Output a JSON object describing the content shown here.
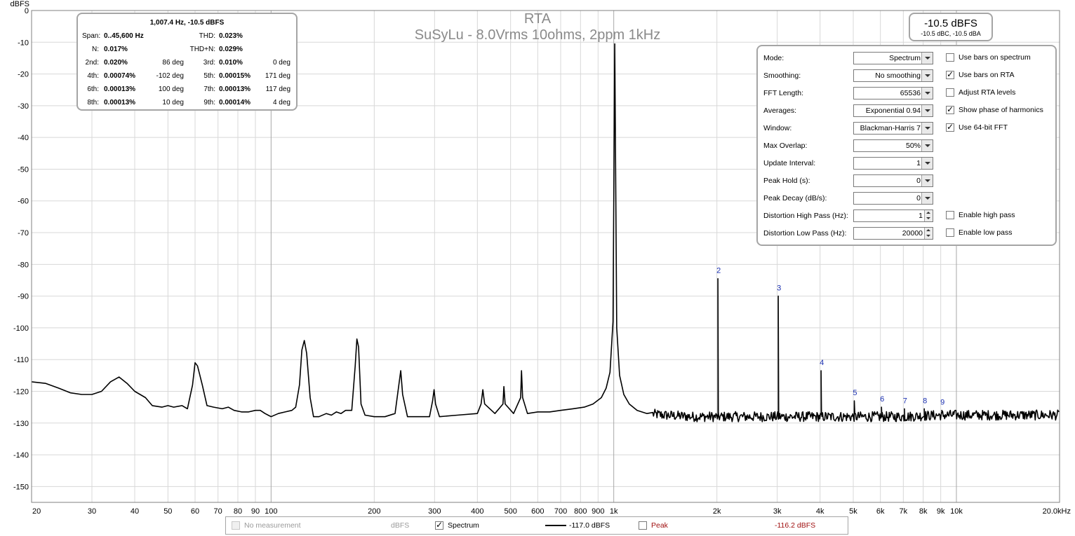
{
  "chart_data": {
    "type": "line",
    "title": "RTA",
    "subtitle": "SuSyLu - 8.0Vrms 10ohms, 2ppm 1kHz",
    "ylabel": "dBFS",
    "xlabel": "",
    "xscale": "log",
    "xlim": [
      20,
      20000
    ],
    "ylim": [
      -155,
      0
    ],
    "grid": true,
    "y_ticks": [
      "0",
      "-10",
      "-20",
      "-30",
      "-40",
      "-50",
      "-60",
      "-70",
      "-80",
      "-90",
      "-100",
      "-110",
      "-120",
      "-130",
      "-140",
      "-150"
    ],
    "x_ticks": [
      {
        "v": 20,
        "label": "20"
      },
      {
        "v": 30,
        "label": "30"
      },
      {
        "v": 40,
        "label": "40"
      },
      {
        "v": 50,
        "label": "50"
      },
      {
        "v": 60,
        "label": "60"
      },
      {
        "v": 70,
        "label": "70"
      },
      {
        "v": 80,
        "label": "80"
      },
      {
        "v": 90,
        "label": "90"
      },
      {
        "v": 100,
        "label": "100"
      },
      {
        "v": 200,
        "label": "200"
      },
      {
        "v": 300,
        "label": "300"
      },
      {
        "v": 400,
        "label": "400"
      },
      {
        "v": 500,
        "label": "500"
      },
      {
        "v": 600,
        "label": "600"
      },
      {
        "v": 700,
        "label": "700"
      },
      {
        "v": 800,
        "label": "800"
      },
      {
        "v": 900,
        "label": "900"
      },
      {
        "v": 1000,
        "label": "1k"
      },
      {
        "v": 2000,
        "label": "2k"
      },
      {
        "v": 3000,
        "label": "3k"
      },
      {
        "v": 4000,
        "label": "4k"
      },
      {
        "v": 5000,
        "label": "5k"
      },
      {
        "v": 6000,
        "label": "6k"
      },
      {
        "v": 7000,
        "label": "7k"
      },
      {
        "v": 8000,
        "label": "8k"
      },
      {
        "v": 9000,
        "label": "9k"
      },
      {
        "v": 10000,
        "label": "10k"
      },
      {
        "v": 20000,
        "label": "20.0kHz"
      }
    ],
    "series": [
      {
        "name": "Spectrum",
        "color": "#000000",
        "baseline": [
          [
            20,
            -117
          ],
          [
            22,
            -117.5
          ],
          [
            24,
            -119
          ],
          [
            26,
            -120.5
          ],
          [
            28,
            -121
          ],
          [
            30,
            -121
          ],
          [
            32,
            -120
          ],
          [
            34,
            -117
          ],
          [
            36,
            -115.5
          ],
          [
            38,
            -117.5
          ],
          [
            40,
            -120
          ],
          [
            43,
            -122
          ],
          [
            45,
            -124.5
          ],
          [
            48,
            -125
          ],
          [
            50,
            -124.5
          ],
          [
            52,
            -125
          ],
          [
            55,
            -124.5
          ],
          [
            57,
            -125.5
          ],
          [
            59,
            -118
          ],
          [
            60,
            -111
          ],
          [
            61,
            -112
          ],
          [
            63,
            -118
          ],
          [
            65,
            -124.5
          ],
          [
            68,
            -125
          ],
          [
            72,
            -125.5
          ],
          [
            75,
            -125
          ],
          [
            78,
            -126
          ],
          [
            82,
            -126.5
          ],
          [
            86,
            -126.5
          ],
          [
            90,
            -126
          ],
          [
            93,
            -126
          ],
          [
            96,
            -127
          ],
          [
            100,
            -128
          ],
          [
            105,
            -127
          ],
          [
            110,
            -126.5
          ],
          [
            115,
            -126
          ],
          [
            118,
            -125
          ],
          [
            121,
            -118
          ],
          [
            123,
            -107
          ],
          [
            125,
            -104
          ],
          [
            127,
            -108
          ],
          [
            130,
            -122
          ],
          [
            133,
            -128
          ],
          [
            138,
            -128
          ],
          [
            145,
            -127
          ],
          [
            150,
            -127.5
          ],
          [
            155,
            -126.5
          ],
          [
            160,
            -127
          ],
          [
            165,
            -126
          ],
          [
            172,
            -126
          ],
          [
            176,
            -112
          ],
          [
            178,
            -103.5
          ],
          [
            180,
            -106
          ],
          [
            183,
            -124
          ],
          [
            188,
            -127.5
          ],
          [
            200,
            -128
          ],
          [
            215,
            -128
          ],
          [
            230,
            -127
          ],
          [
            236,
            -118
          ],
          [
            239,
            -113.5
          ],
          [
            242,
            -121
          ],
          [
            250,
            -128
          ],
          [
            270,
            -128
          ],
          [
            290,
            -128
          ],
          [
            296,
            -123
          ],
          [
            299,
            -119.5
          ],
          [
            302,
            -124
          ],
          [
            310,
            -128
          ],
          [
            350,
            -127.5
          ],
          [
            400,
            -127
          ],
          [
            410,
            -124
          ],
          [
            415,
            -119.5
          ],
          [
            420,
            -124
          ],
          [
            450,
            -127
          ],
          [
            475,
            -124
          ],
          [
            478,
            -118.5
          ],
          [
            482,
            -124
          ],
          [
            510,
            -127
          ],
          [
            535,
            -122
          ],
          [
            538,
            -113.5
          ],
          [
            542,
            -122
          ],
          [
            560,
            -127
          ],
          [
            600,
            -126.5
          ],
          [
            650,
            -126.5
          ],
          [
            700,
            -126
          ],
          [
            760,
            -125.5
          ],
          [
            820,
            -125
          ],
          [
            870,
            -124
          ],
          [
            920,
            -122
          ],
          [
            950,
            -119
          ],
          [
            975,
            -114
          ],
          [
            995,
            -98
          ],
          [
            1007,
            -10.5
          ],
          [
            1020,
            -100
          ],
          [
            1040,
            -115
          ],
          [
            1070,
            -121
          ],
          [
            1110,
            -124
          ],
          [
            1170,
            -126
          ],
          [
            1250,
            -127
          ],
          [
            1400,
            -127.5
          ],
          [
            1700,
            -128
          ],
          [
            2000,
            -128
          ],
          [
            2300,
            -128
          ],
          [
            2800,
            -128
          ],
          [
            3500,
            -128
          ],
          [
            4500,
            -128
          ],
          [
            5500,
            -128
          ],
          [
            7000,
            -128
          ],
          [
            9000,
            -127.5
          ],
          [
            12000,
            -127.5
          ],
          [
            15000,
            -127.5
          ],
          [
            20000,
            -127.5
          ]
        ],
        "noise_floor_dbfs": -128,
        "peaks_db": [
          [
            2014,
            -84.5
          ],
          [
            3021,
            -90
          ],
          [
            4028,
            -113.5
          ],
          [
            5035,
            -123
          ],
          [
            6043,
            -125
          ],
          [
            7050,
            -125.5
          ],
          [
            8057,
            -125.5
          ],
          [
            9065,
            -126
          ]
        ]
      }
    ],
    "harmonic_markers": [
      {
        "label": "2",
        "x": 2014,
        "y": -84.5
      },
      {
        "label": "3",
        "x": 3021,
        "y": -90
      },
      {
        "label": "4",
        "x": 4028,
        "y": -113.5
      },
      {
        "label": "5",
        "x": 5035,
        "y": -123
      },
      {
        "label": "6",
        "x": 6043,
        "y": -125
      },
      {
        "label": "7",
        "x": 7050,
        "y": -125.5
      },
      {
        "label": "8",
        "x": 8057,
        "y": -125.5
      },
      {
        "label": "9",
        "x": 9065,
        "y": -126
      }
    ],
    "marker_color": "#1a2fb0"
  },
  "stats": {
    "header": "1,007.4 Hz, -10.5 dBFS",
    "span_label": "Span:",
    "span_value": "0..45,600 Hz",
    "thd_label": "THD:",
    "thd_value": "0.023%",
    "n_label": "N:",
    "n_value": "0.017%",
    "thdn_label": "THD+N:",
    "thdn_value": "0.029%",
    "rows": [
      {
        "l1": "2nd:",
        "v1": "0.020%",
        "p1": "86 deg",
        "l2": "3rd:",
        "v2": "0.010%",
        "p2": "0 deg"
      },
      {
        "l1": "4th:",
        "v1": "0.00074%",
        "p1": "-102 deg",
        "l2": "5th:",
        "v2": "0.00015%",
        "p2": "171 deg"
      },
      {
        "l1": "6th:",
        "v1": "0.00013%",
        "p1": "100 deg",
        "l2": "7th:",
        "v2": "0.00013%",
        "p2": "117 deg"
      },
      {
        "l1": "8th:",
        "v1": "0.00013%",
        "p1": "10 deg",
        "l2": "9th:",
        "v2": "0.00014%",
        "p2": "4 deg"
      }
    ]
  },
  "level": {
    "main": "-10.5 dBFS",
    "sub": "-10.5 dBC, -10.5 dBA"
  },
  "settings": {
    "mode": {
      "label": "Mode:",
      "value": "Spectrum"
    },
    "smoothing": {
      "label": "Smoothing:",
      "value": "No  smoothing"
    },
    "fft_length": {
      "label": "FFT Length:",
      "value": "65536"
    },
    "averages": {
      "label": "Averages:",
      "value": "Exponential 0.94"
    },
    "window": {
      "label": "Window:",
      "value": "Blackman-Harris 7"
    },
    "max_overlap": {
      "label": "Max Overlap:",
      "value": "50%"
    },
    "update_interval": {
      "label": "Update Interval:",
      "value": "1"
    },
    "peak_hold": {
      "label": "Peak Hold (s):",
      "value": "0"
    },
    "peak_decay": {
      "label": "Peak Decay (dB/s):",
      "value": "0"
    },
    "dist_high_pass": {
      "label": "Distortion High Pass (Hz):",
      "value": "1"
    },
    "dist_low_pass": {
      "label": "Distortion Low Pass (Hz):",
      "value": "20000"
    },
    "checks": {
      "bars_spectrum": {
        "label": "Use bars on spectrum",
        "checked": false
      },
      "bars_rta": {
        "label": "Use bars on RTA",
        "checked": true
      },
      "adjust_rta": {
        "label": "Adjust RTA levels",
        "checked": false
      },
      "phase_harm": {
        "label": "Show phase of harmonics",
        "checked": true
      },
      "fft64": {
        "label": "Use 64-bit FFT",
        "checked": true
      },
      "high_pass": {
        "label": "Enable high pass",
        "checked": false
      },
      "low_pass": {
        "label": "Enable low pass",
        "checked": false
      }
    }
  },
  "legend": {
    "no_measurement": "No measurement",
    "unit": "dBFS",
    "spectrum_label": "Spectrum",
    "spectrum_value": "-117.0 dBFS",
    "peak_label": "Peak",
    "peak_value": "-116.2 dBFS",
    "peak_color": "#a01010"
  }
}
